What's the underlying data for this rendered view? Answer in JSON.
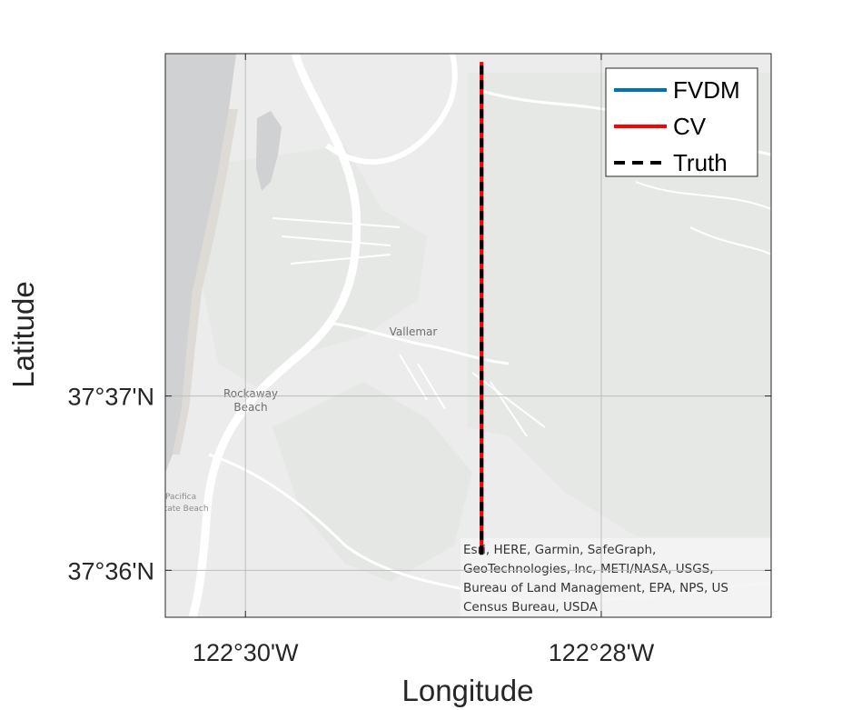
{
  "chart_data": {
    "type": "line",
    "title": "",
    "xlabel": "Longitude",
    "ylabel": "Latitude",
    "xlim": [
      -122.5075,
      -122.4508
    ],
    "ylim": [
      37.5955,
      37.6495
    ],
    "x_ticks": [
      {
        "value": -122.5,
        "label": "122°30'W"
      },
      {
        "value": -122.4667,
        "label": "122°28'W"
      }
    ],
    "y_ticks": [
      {
        "value": 37.6,
        "label": "37°36'N"
      },
      {
        "value": 37.6167,
        "label": "37°37'N"
      }
    ],
    "grid": true,
    "legend_position": "top-right",
    "series": [
      {
        "name": "FVDM",
        "color": "#0072BD",
        "style": "solid",
        "x": [
          -122.4779,
          -122.4779
        ],
        "y": [
          37.6015,
          37.6487
        ]
      },
      {
        "name": "CV",
        "color": "#FF0000",
        "style": "solid",
        "x": [
          -122.4779,
          -122.4779
        ],
        "y": [
          37.6015,
          37.6487
        ]
      },
      {
        "name": "Truth",
        "color": "#000000",
        "style": "dashed",
        "x": [
          -122.4779,
          -122.4779
        ],
        "y": [
          37.6015,
          37.6487
        ]
      }
    ]
  },
  "basemap": {
    "labels": [
      {
        "id": "vallemar",
        "text": "Vallemar"
      },
      {
        "id": "rockaway-1",
        "text": "Rockaway"
      },
      {
        "id": "rockaway-2",
        "text": "Beach"
      },
      {
        "id": "pacifica-1",
        "text": "Pacifica"
      },
      {
        "id": "pacifica-2",
        "text": "State Beach"
      }
    ],
    "attribution": [
      "Esri, HERE, Garmin, SafeGraph,",
      "GeoTechnologies, Inc, METI/NASA, USGS,",
      "Bureau of Land Management, EPA, NPS, US",
      "Census Bureau, USDA"
    ]
  }
}
